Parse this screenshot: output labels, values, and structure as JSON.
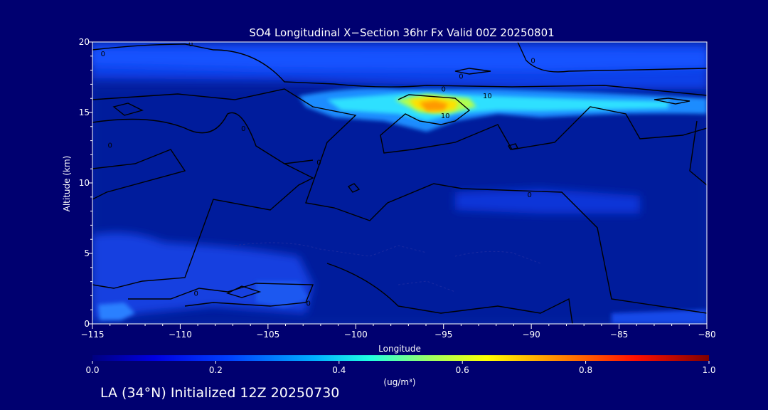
{
  "chart_data": {
    "type": "heatmap",
    "title": "SO4 Longitudinal X−Section 36hr  Fx Valid 00Z 20250801",
    "xlabel": "Longitude",
    "ylabel": "Altitude (km)",
    "xlim": [
      -115,
      -80
    ],
    "ylim": [
      0,
      20
    ],
    "xticks": [
      -115,
      -110,
      -105,
      -100,
      -95,
      -90,
      -85,
      -80
    ],
    "xtick_labels": [
      "−115",
      "−110",
      "−105",
      "−100",
      "−95",
      "−90",
      "−85",
      "−80"
    ],
    "yticks": [
      0,
      5,
      10,
      15,
      20
    ],
    "ytick_labels": [
      "0",
      "5",
      "10",
      "15",
      "20"
    ],
    "colorbar": {
      "range": [
        0.0,
        1.0
      ],
      "tick_labels": [
        "0.0",
        "0.2",
        "0.4",
        "0.6",
        "0.8",
        "1.0"
      ],
      "unit_label": "(ug/m³)"
    },
    "contour_labels": [
      {
        "text": "0",
        "lon": -114.4,
        "alt": 19.2
      },
      {
        "text": "0",
        "lon": -109.4,
        "alt": 19.9
      },
      {
        "text": "0",
        "lon": -89.9,
        "alt": 18.7
      },
      {
        "text": "0",
        "lon": -94.0,
        "alt": 17.6
      },
      {
        "text": "0",
        "lon": -95.0,
        "alt": 16.7
      },
      {
        "text": "10",
        "lon": -92.5,
        "alt": 16.2
      },
      {
        "text": "10",
        "lon": -94.9,
        "alt": 14.8
      },
      {
        "text": "0",
        "lon": -106.4,
        "alt": 13.9
      },
      {
        "text": "0",
        "lon": -114.0,
        "alt": 12.7
      },
      {
        "text": "0",
        "lon": -102.1,
        "alt": 11.5
      },
      {
        "text": "0",
        "lon": -90.1,
        "alt": 9.2
      },
      {
        "text": "0",
        "lon": -109.1,
        "alt": 2.2
      },
      {
        "text": "0",
        "lon": -102.7,
        "alt": 1.5
      }
    ],
    "sample_values": [
      {
        "lon": -95.5,
        "alt": 15.3,
        "value": 0.65
      },
      {
        "lon": -94.5,
        "alt": 15.0,
        "value": 0.5
      },
      {
        "lon": -99,
        "alt": 15.3,
        "value": 0.3
      },
      {
        "lon": -88,
        "alt": 15.5,
        "value": 0.28
      },
      {
        "lon": -106,
        "alt": 16.0,
        "value": 0.22
      },
      {
        "lon": -105,
        "alt": 19.0,
        "value": 0.2
      },
      {
        "lon": -85,
        "alt": 18.8,
        "value": 0.2
      },
      {
        "lon": -113.5,
        "alt": 0.7,
        "value": 0.18
      },
      {
        "lon": -104,
        "alt": 2.2,
        "value": 0.12
      },
      {
        "lon": -89,
        "alt": 8.8,
        "value": 0.1
      }
    ]
  },
  "footer_text": "LA (34°N) Initialized 12Z 20250730"
}
